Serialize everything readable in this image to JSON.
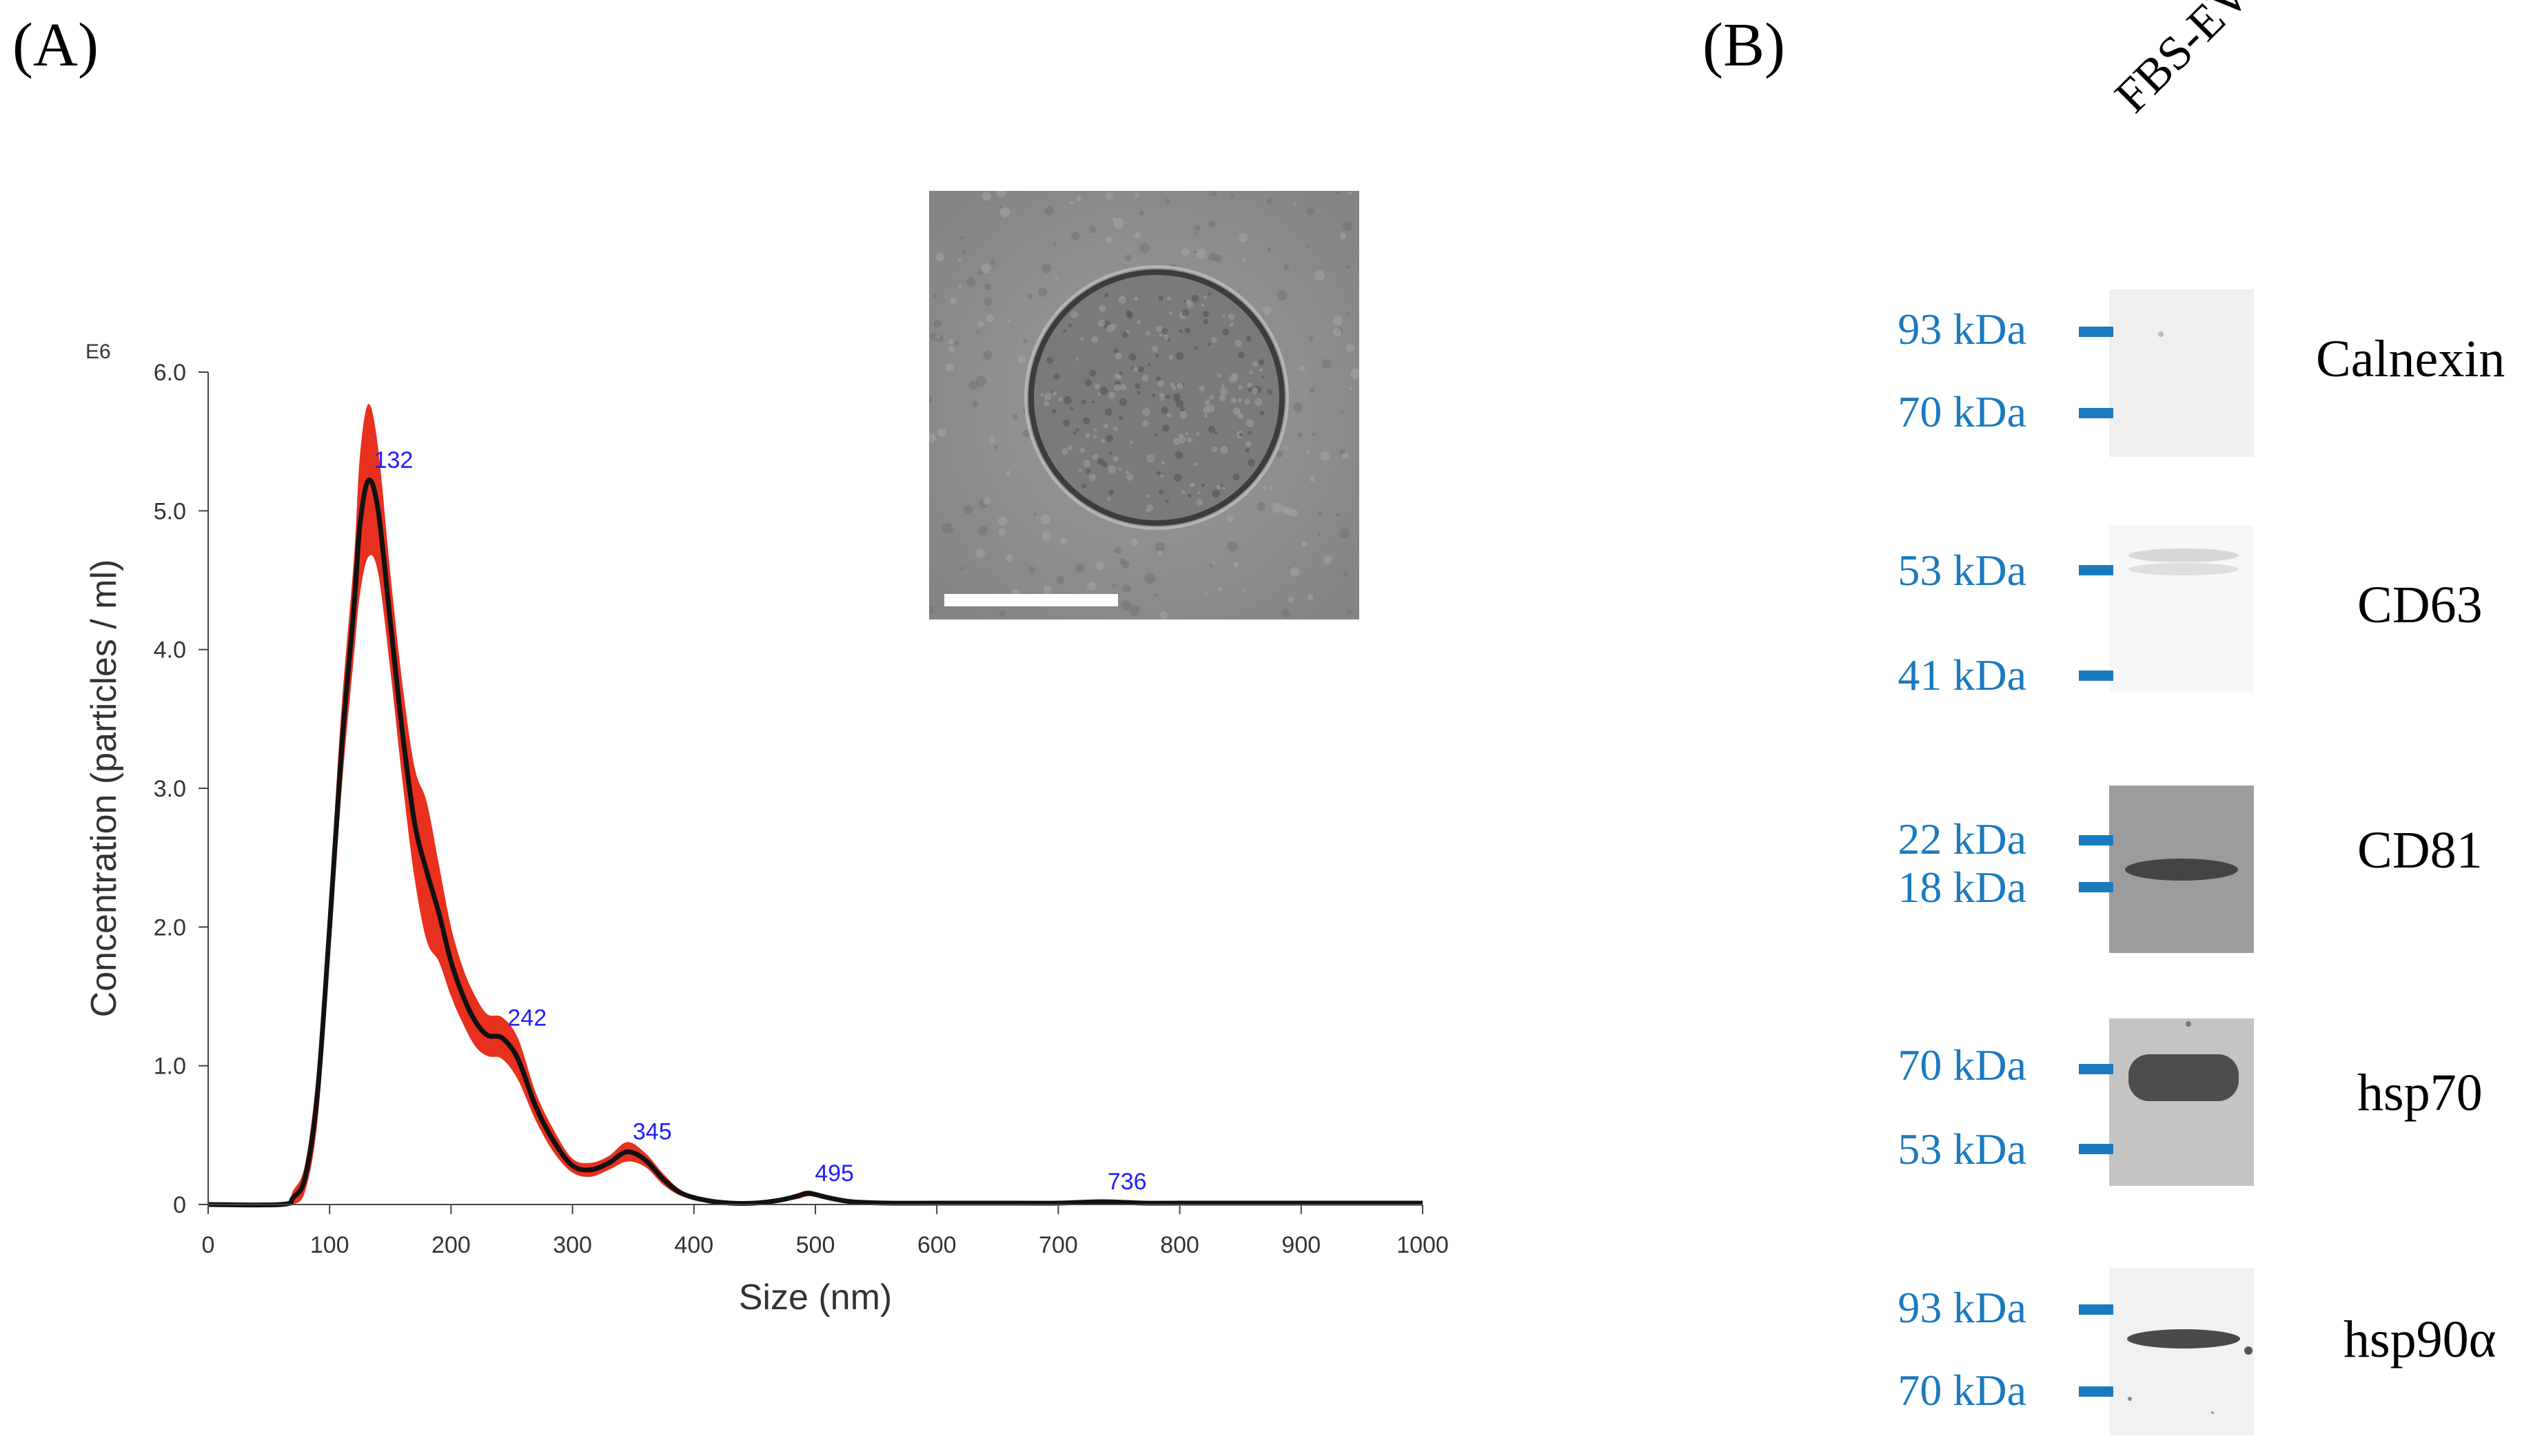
{
  "panel_a_label": "(A)",
  "panel_b_label": "(B)",
  "chart_data": {
    "type": "line",
    "title": "",
    "xlabel": "Size (nm)",
    "ylabel": "Concentration (particles / ml)",
    "y_multiplier_label": "E6",
    "xlim": [
      0,
      1000
    ],
    "ylim": [
      0,
      6.0
    ],
    "x_ticks": [
      "0",
      "100",
      "200",
      "300",
      "400",
      "500",
      "600",
      "700",
      "800",
      "900",
      "1000"
    ],
    "y_ticks": [
      "0",
      "1.0",
      "2.0",
      "3.0",
      "4.0",
      "5.0",
      "6.0"
    ],
    "grid": false,
    "colors": {
      "mean_line": "#111111",
      "error_band": "#e8301f",
      "peak_label": "#1f1fff"
    },
    "series": [
      {
        "x": [
          0,
          60,
          70,
          80,
          90,
          100,
          110,
          120,
          125,
          132,
          140,
          150,
          160,
          170,
          180,
          190,
          200,
          210,
          220,
          230,
          242,
          255,
          270,
          285,
          300,
          315,
          330,
          345,
          360,
          375,
          390,
          410,
          430,
          450,
          470,
          485,
          495,
          510,
          530,
          560,
          600,
          650,
          700,
          736,
          770,
          800,
          900,
          1000
        ],
        "values": [
          0,
          0,
          0.05,
          0.2,
          0.8,
          2.0,
          3.3,
          4.3,
          4.9,
          5.22,
          5.0,
          4.2,
          3.4,
          2.75,
          2.4,
          2.1,
          1.75,
          1.5,
          1.32,
          1.22,
          1.2,
          1.05,
          0.7,
          0.45,
          0.28,
          0.25,
          0.3,
          0.38,
          0.32,
          0.18,
          0.08,
          0.03,
          0.01,
          0.01,
          0.03,
          0.06,
          0.08,
          0.05,
          0.02,
          0.01,
          0.01,
          0.01,
          0.01,
          0.02,
          0.01,
          0.01,
          0.01,
          0.01
        ],
        "error": [
          0,
          0,
          0.05,
          0.1,
          0.2,
          0.25,
          0.3,
          0.35,
          0.5,
          0.55,
          0.45,
          0.35,
          0.35,
          0.4,
          0.5,
          0.35,
          0.25,
          0.2,
          0.18,
          0.15,
          0.15,
          0.15,
          0.1,
          0.08,
          0.05,
          0.05,
          0.05,
          0.07,
          0.05,
          0.04,
          0.02,
          0.01,
          0.01,
          0.01,
          0.01,
          0.02,
          0.02,
          0.01,
          0.01,
          0.01,
          0.01,
          0.01,
          0.01,
          0.01,
          0.01,
          0.01,
          0.01,
          0.01
        ]
      }
    ],
    "peak_labels": [
      {
        "x": 132,
        "y": 5.22,
        "text": "132"
      },
      {
        "x": 242,
        "y": 1.2,
        "text": "242"
      },
      {
        "x": 345,
        "y": 0.38,
        "text": "345"
      },
      {
        "x": 495,
        "y": 0.08,
        "text": "495"
      },
      {
        "x": 736,
        "y": 0.02,
        "text": "736"
      }
    ]
  },
  "western_blot": {
    "lane_label": "FBS-EV",
    "marker_color": "#1a7abf",
    "panels": [
      {
        "protein": "Calnexin",
        "markers": [
          {
            "label": "93 kDa"
          },
          {
            "label": "70 kDa"
          }
        ]
      },
      {
        "protein": "CD63",
        "markers": [
          {
            "label": "53 kDa"
          },
          {
            "label": "41 kDa"
          }
        ]
      },
      {
        "protein": "CD81",
        "markers": [
          {
            "label": "22 kDa"
          },
          {
            "label": "18 kDa"
          }
        ]
      },
      {
        "protein": "hsp70",
        "markers": [
          {
            "label": "70 kDa"
          },
          {
            "label": "53 kDa"
          }
        ]
      },
      {
        "protein": "hsp90α",
        "markers": [
          {
            "label": "93 kDa"
          },
          {
            "label": "70 kDa"
          }
        ]
      }
    ]
  }
}
